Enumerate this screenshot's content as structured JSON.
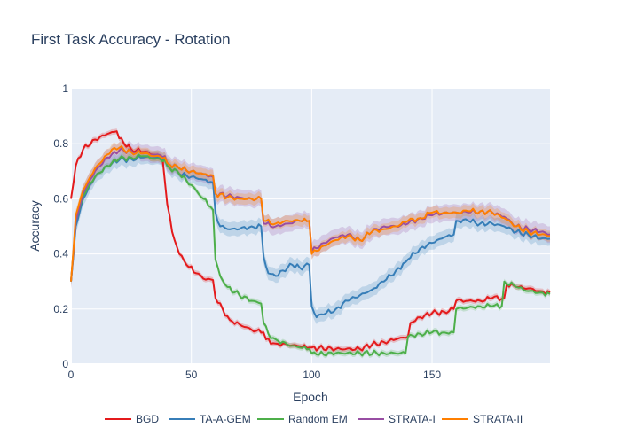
{
  "chart_data": {
    "type": "line",
    "title": "First Task Accuracy - Rotation",
    "xlabel": "Epoch",
    "ylabel": "Accuracy",
    "xlim": [
      0,
      199
    ],
    "ylim": [
      0,
      1
    ],
    "x_ticks": [
      0,
      50,
      100,
      150
    ],
    "y_ticks": [
      0,
      0.2,
      0.4,
      0.6,
      0.8,
      1
    ],
    "x_tick_labels": [
      "0",
      "50",
      "100",
      "150"
    ],
    "y_tick_labels": [
      "0",
      "0.2",
      "0.4",
      "0.6",
      "0.8",
      "1"
    ],
    "grid": true,
    "legend_position": "bottom",
    "background": "#e5ecf6",
    "series": [
      {
        "name": "BGD",
        "color": "#e41a1c",
        "band": 0.01,
        "points": [
          [
            0,
            0.6
          ],
          [
            2,
            0.72
          ],
          [
            5,
            0.78
          ],
          [
            10,
            0.815
          ],
          [
            15,
            0.835
          ],
          [
            19,
            0.845
          ],
          [
            20,
            0.82
          ],
          [
            25,
            0.78
          ],
          [
            30,
            0.77
          ],
          [
            35,
            0.76
          ],
          [
            38,
            0.75
          ],
          [
            40,
            0.58
          ],
          [
            42,
            0.48
          ],
          [
            45,
            0.4
          ],
          [
            48,
            0.36
          ],
          [
            52,
            0.33
          ],
          [
            55,
            0.31
          ],
          [
            59,
            0.305
          ],
          [
            60,
            0.24
          ],
          [
            63,
            0.2
          ],
          [
            66,
            0.16
          ],
          [
            70,
            0.145
          ],
          [
            75,
            0.125
          ],
          [
            80,
            0.115
          ],
          [
            81,
            0.09
          ],
          [
            85,
            0.075
          ],
          [
            90,
            0.07
          ],
          [
            95,
            0.065
          ],
          [
            99,
            0.06
          ],
          [
            100,
            0.06
          ],
          [
            110,
            0.055
          ],
          [
            120,
            0.055
          ],
          [
            125,
            0.07
          ],
          [
            130,
            0.08
          ],
          [
            135,
            0.09
          ],
          [
            140,
            0.1
          ],
          [
            141,
            0.15
          ],
          [
            145,
            0.17
          ],
          [
            150,
            0.185
          ],
          [
            155,
            0.19
          ],
          [
            159,
            0.2
          ],
          [
            160,
            0.23
          ],
          [
            165,
            0.23
          ],
          [
            170,
            0.23
          ],
          [
            175,
            0.24
          ],
          [
            180,
            0.24
          ],
          [
            181,
            0.29
          ],
          [
            185,
            0.28
          ],
          [
            190,
            0.275
          ],
          [
            195,
            0.265
          ],
          [
            199,
            0.26
          ]
        ]
      },
      {
        "name": "TA-A-GEM",
        "color": "#377eb8",
        "band": 0.025,
        "points": [
          [
            0,
            0.3
          ],
          [
            2,
            0.5
          ],
          [
            5,
            0.6
          ],
          [
            10,
            0.68
          ],
          [
            15,
            0.72
          ],
          [
            20,
            0.74
          ],
          [
            25,
            0.745
          ],
          [
            30,
            0.75
          ],
          [
            35,
            0.75
          ],
          [
            39,
            0.745
          ],
          [
            40,
            0.72
          ],
          [
            45,
            0.69
          ],
          [
            50,
            0.68
          ],
          [
            55,
            0.67
          ],
          [
            59,
            0.66
          ],
          [
            60,
            0.55
          ],
          [
            62,
            0.5
          ],
          [
            65,
            0.49
          ],
          [
            70,
            0.49
          ],
          [
            75,
            0.5
          ],
          [
            79,
            0.5
          ],
          [
            80,
            0.39
          ],
          [
            82,
            0.33
          ],
          [
            85,
            0.32
          ],
          [
            88,
            0.34
          ],
          [
            92,
            0.36
          ],
          [
            95,
            0.35
          ],
          [
            99,
            0.36
          ],
          [
            100,
            0.21
          ],
          [
            102,
            0.17
          ],
          [
            105,
            0.18
          ],
          [
            110,
            0.2
          ],
          [
            115,
            0.23
          ],
          [
            120,
            0.25
          ],
          [
            125,
            0.27
          ],
          [
            130,
            0.3
          ],
          [
            135,
            0.34
          ],
          [
            139,
            0.37
          ],
          [
            140,
            0.38
          ],
          [
            145,
            0.42
          ],
          [
            150,
            0.44
          ],
          [
            155,
            0.46
          ],
          [
            159,
            0.47
          ],
          [
            160,
            0.52
          ],
          [
            165,
            0.52
          ],
          [
            170,
            0.51
          ],
          [
            175,
            0.51
          ],
          [
            180,
            0.5
          ],
          [
            185,
            0.48
          ],
          [
            190,
            0.47
          ],
          [
            195,
            0.455
          ],
          [
            199,
            0.455
          ]
        ]
      },
      {
        "name": "Random EM",
        "color": "#4daf4a",
        "band": 0.01,
        "points": [
          [
            0,
            0.3
          ],
          [
            2,
            0.52
          ],
          [
            5,
            0.61
          ],
          [
            10,
            0.68
          ],
          [
            15,
            0.72
          ],
          [
            20,
            0.745
          ],
          [
            25,
            0.75
          ],
          [
            30,
            0.755
          ],
          [
            35,
            0.745
          ],
          [
            39,
            0.74
          ],
          [
            40,
            0.72
          ],
          [
            45,
            0.69
          ],
          [
            50,
            0.65
          ],
          [
            55,
            0.6
          ],
          [
            58,
            0.57
          ],
          [
            59,
            0.56
          ],
          [
            60,
            0.38
          ],
          [
            62,
            0.32
          ],
          [
            65,
            0.28
          ],
          [
            70,
            0.25
          ],
          [
            75,
            0.23
          ],
          [
            79,
            0.22
          ],
          [
            80,
            0.15
          ],
          [
            82,
            0.11
          ],
          [
            85,
            0.09
          ],
          [
            90,
            0.07
          ],
          [
            95,
            0.06
          ],
          [
            99,
            0.055
          ],
          [
            100,
            0.04
          ],
          [
            102,
            0.035
          ],
          [
            110,
            0.04
          ],
          [
            120,
            0.04
          ],
          [
            130,
            0.04
          ],
          [
            139,
            0.04
          ],
          [
            140,
            0.1
          ],
          [
            145,
            0.11
          ],
          [
            150,
            0.115
          ],
          [
            155,
            0.115
          ],
          [
            159,
            0.115
          ],
          [
            160,
            0.2
          ],
          [
            165,
            0.205
          ],
          [
            170,
            0.21
          ],
          [
            175,
            0.21
          ],
          [
            179,
            0.21
          ],
          [
            180,
            0.3
          ],
          [
            185,
            0.28
          ],
          [
            190,
            0.265
          ],
          [
            195,
            0.26
          ],
          [
            199,
            0.255
          ]
        ]
      },
      {
        "name": "STRATA-I",
        "color": "#984ea3",
        "band": 0.03,
        "points": [
          [
            0,
            0.3
          ],
          [
            2,
            0.52
          ],
          [
            5,
            0.62
          ],
          [
            10,
            0.7
          ],
          [
            15,
            0.75
          ],
          [
            20,
            0.775
          ],
          [
            25,
            0.775
          ],
          [
            30,
            0.765
          ],
          [
            35,
            0.76
          ],
          [
            39,
            0.755
          ],
          [
            40,
            0.73
          ],
          [
            45,
            0.71
          ],
          [
            50,
            0.7
          ],
          [
            55,
            0.69
          ],
          [
            59,
            0.68
          ],
          [
            60,
            0.62
          ],
          [
            65,
            0.61
          ],
          [
            70,
            0.605
          ],
          [
            75,
            0.6
          ],
          [
            79,
            0.6
          ],
          [
            80,
            0.51
          ],
          [
            85,
            0.5
          ],
          [
            90,
            0.51
          ],
          [
            95,
            0.52
          ],
          [
            99,
            0.52
          ],
          [
            100,
            0.41
          ],
          [
            105,
            0.44
          ],
          [
            110,
            0.46
          ],
          [
            115,
            0.47
          ],
          [
            120,
            0.45
          ],
          [
            125,
            0.48
          ],
          [
            130,
            0.5
          ],
          [
            135,
            0.5
          ],
          [
            140,
            0.51
          ],
          [
            145,
            0.53
          ],
          [
            150,
            0.54
          ],
          [
            155,
            0.55
          ],
          [
            160,
            0.55
          ],
          [
            165,
            0.55
          ],
          [
            170,
            0.555
          ],
          [
            175,
            0.55
          ],
          [
            180,
            0.535
          ],
          [
            185,
            0.5
          ],
          [
            190,
            0.49
          ],
          [
            195,
            0.48
          ],
          [
            199,
            0.47
          ]
        ]
      },
      {
        "name": "STRATA-II",
        "color": "#ff7f00",
        "band": 0.02,
        "points": [
          [
            0,
            0.3
          ],
          [
            2,
            0.54
          ],
          [
            5,
            0.63
          ],
          [
            10,
            0.71
          ],
          [
            15,
            0.76
          ],
          [
            18,
            0.785
          ],
          [
            20,
            0.785
          ],
          [
            25,
            0.77
          ],
          [
            30,
            0.765
          ],
          [
            35,
            0.755
          ],
          [
            39,
            0.75
          ],
          [
            40,
            0.73
          ],
          [
            45,
            0.71
          ],
          [
            50,
            0.7
          ],
          [
            55,
            0.69
          ],
          [
            59,
            0.685
          ],
          [
            60,
            0.62
          ],
          [
            65,
            0.605
          ],
          [
            70,
            0.6
          ],
          [
            75,
            0.6
          ],
          [
            79,
            0.6
          ],
          [
            80,
            0.52
          ],
          [
            85,
            0.51
          ],
          [
            90,
            0.52
          ],
          [
            95,
            0.52
          ],
          [
            99,
            0.52
          ],
          [
            100,
            0.4
          ],
          [
            105,
            0.43
          ],
          [
            110,
            0.45
          ],
          [
            115,
            0.465
          ],
          [
            120,
            0.45
          ],
          [
            125,
            0.48
          ],
          [
            130,
            0.49
          ],
          [
            135,
            0.5
          ],
          [
            140,
            0.52
          ],
          [
            145,
            0.53
          ],
          [
            150,
            0.55
          ],
          [
            155,
            0.55
          ],
          [
            160,
            0.55
          ],
          [
            165,
            0.555
          ],
          [
            170,
            0.555
          ],
          [
            175,
            0.55
          ],
          [
            180,
            0.53
          ],
          [
            185,
            0.5
          ],
          [
            190,
            0.48
          ],
          [
            195,
            0.47
          ],
          [
            199,
            0.465
          ]
        ]
      }
    ]
  }
}
